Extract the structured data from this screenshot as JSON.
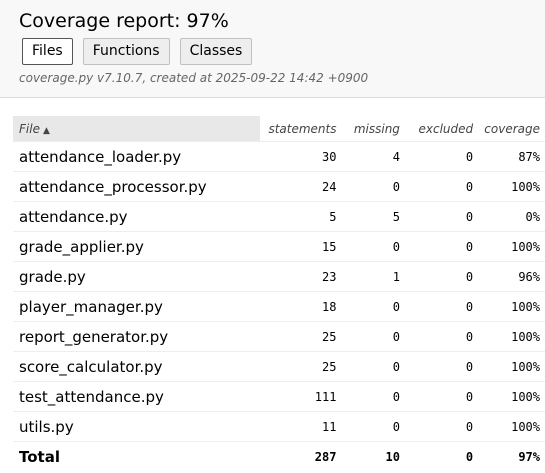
{
  "header": {
    "title": "Coverage report: 97%",
    "tabs": [
      {
        "label": "Files",
        "active": true
      },
      {
        "label": "Functions",
        "active": false
      },
      {
        "label": "Classes",
        "active": false
      }
    ],
    "meta": "coverage.py v7.10.7, created at 2025-09-22 14:42 +0900"
  },
  "table": {
    "columns": {
      "file": "File",
      "statements": "statements",
      "missing": "missing",
      "excluded": "excluded",
      "coverage": "coverage"
    },
    "sort_icon": "sort-ascending-icon",
    "rows": [
      {
        "file": "attendance_loader.py",
        "statements": "30",
        "missing": "4",
        "excluded": "0",
        "coverage": "87%"
      },
      {
        "file": "attendance_processor.py",
        "statements": "24",
        "missing": "0",
        "excluded": "0",
        "coverage": "100%"
      },
      {
        "file": "attendance.py",
        "statements": "5",
        "missing": "5",
        "excluded": "0",
        "coverage": "0%"
      },
      {
        "file": "grade_applier.py",
        "statements": "15",
        "missing": "0",
        "excluded": "0",
        "coverage": "100%"
      },
      {
        "file": "grade.py",
        "statements": "23",
        "missing": "1",
        "excluded": "0",
        "coverage": "96%"
      },
      {
        "file": "player_manager.py",
        "statements": "18",
        "missing": "0",
        "excluded": "0",
        "coverage": "100%"
      },
      {
        "file": "report_generator.py",
        "statements": "25",
        "missing": "0",
        "excluded": "0",
        "coverage": "100%"
      },
      {
        "file": "score_calculator.py",
        "statements": "25",
        "missing": "0",
        "excluded": "0",
        "coverage": "100%"
      },
      {
        "file": "test_attendance.py",
        "statements": "111",
        "missing": "0",
        "excluded": "0",
        "coverage": "100%"
      },
      {
        "file": "utils.py",
        "statements": "11",
        "missing": "0",
        "excluded": "0",
        "coverage": "100%"
      }
    ],
    "total": {
      "file": "Total",
      "statements": "287",
      "missing": "10",
      "excluded": "0",
      "coverage": "97%"
    }
  }
}
